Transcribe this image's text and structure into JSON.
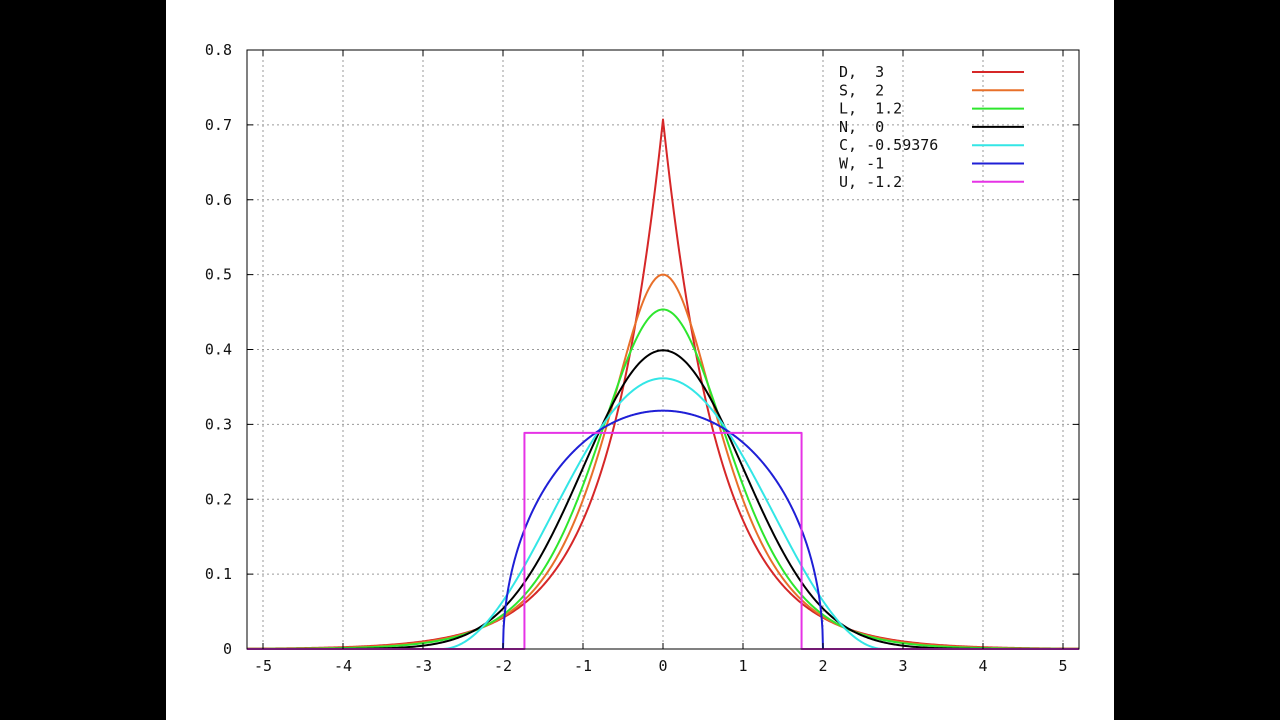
{
  "chart_data": {
    "type": "line",
    "title": "",
    "xlabel": "",
    "ylabel": "",
    "xlim": [
      -5.2,
      5.2
    ],
    "ylim": [
      0,
      0.8
    ],
    "xticks": [
      "-5",
      "-4",
      "-3",
      "-2",
      "-1",
      "0",
      "1",
      "2",
      "3",
      "4",
      "5"
    ],
    "yticks": [
      "0",
      "0.1",
      "0.2",
      "0.3",
      "0.4",
      "0.5",
      "0.6",
      "0.7",
      "0.8"
    ],
    "grid": true,
    "legend_position": "top-right",
    "series": [
      {
        "name": "D,  3",
        "color": "#d62728",
        "dist": "laplace",
        "peak": 0.7071
      },
      {
        "name": "S,  2",
        "color": "#e8702a",
        "dist": "sech",
        "peak": 0.5
      },
      {
        "name": "L,  1.2",
        "color": "#2ee62e",
        "dist": "logistic",
        "peak": 0.4534
      },
      {
        "name": "N,  0",
        "color": "#000000",
        "dist": "normal",
        "peak": 0.3989
      },
      {
        "name": "C, -0.59376",
        "color": "#33e6e6",
        "dist": "raised-cosine",
        "peak": 0.3617
      },
      {
        "name": "W, -1",
        "color": "#1f1fd6",
        "dist": "semicircle",
        "peak": 0.3183
      },
      {
        "name": "U, -1.2",
        "color": "#e633e6",
        "dist": "uniform",
        "peak": 0.2887
      }
    ]
  }
}
